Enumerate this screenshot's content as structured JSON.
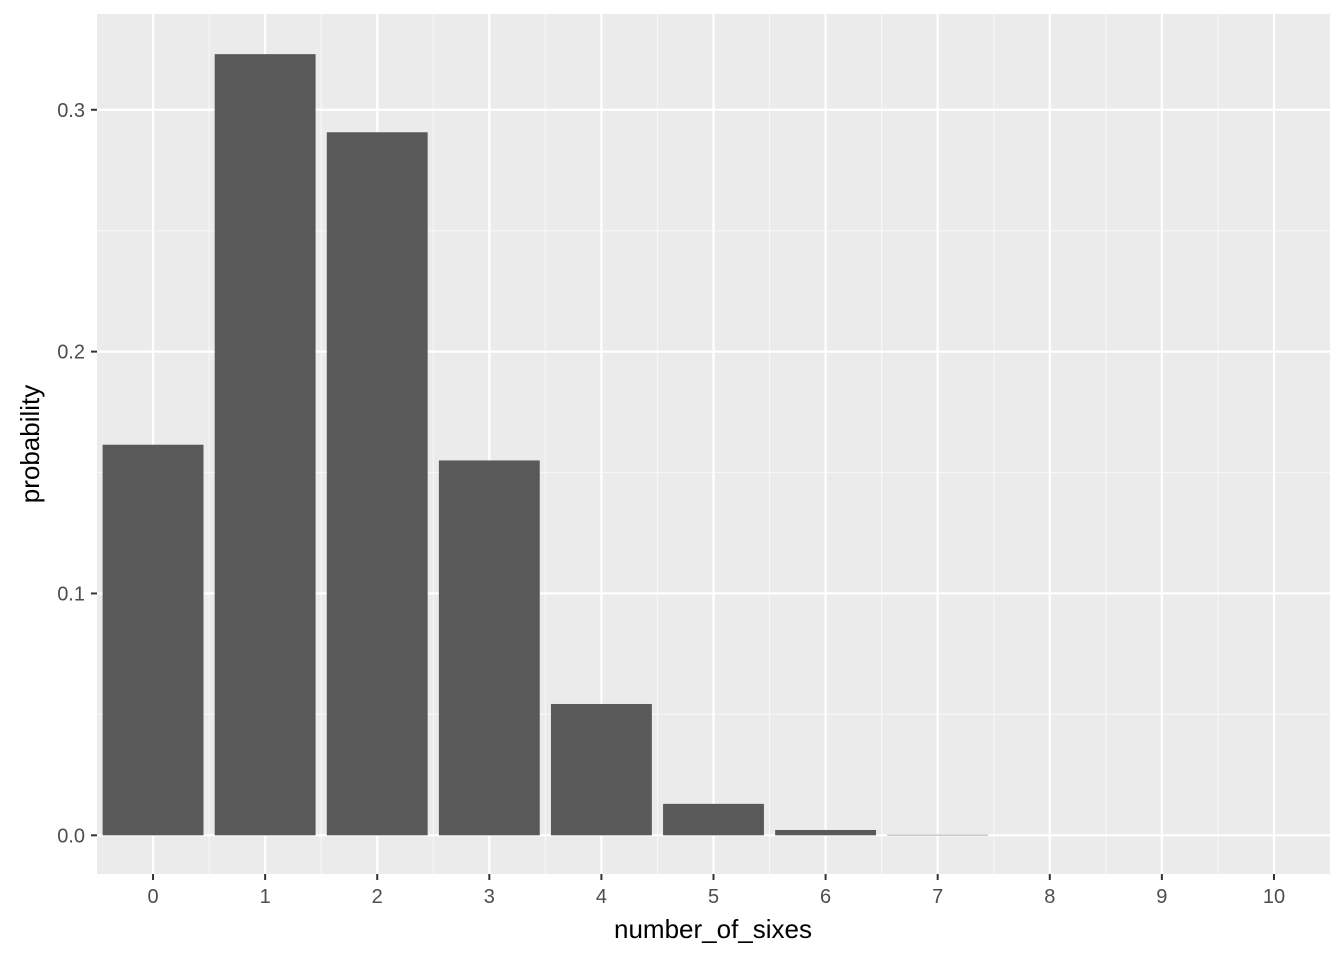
{
  "chart_data": {
    "type": "bar",
    "xlabel": "number_of_sixes",
    "ylabel": "probability",
    "categories": [
      "0",
      "1",
      "2",
      "3",
      "4",
      "5",
      "6",
      "7",
      "8",
      "9",
      "10"
    ],
    "values": [
      0.1615,
      0.323,
      0.2907,
      0.155,
      0.0543,
      0.013,
      0.0022,
      0.0002,
      0.0,
      0.0,
      0.0
    ],
    "xlim": [
      -0.5,
      10.5
    ],
    "ylim": [
      -0.016,
      0.3396
    ],
    "yticks": [
      0.0,
      0.1,
      0.2,
      0.3
    ],
    "ytick_labels": [
      "0.0",
      "0.1",
      "0.2",
      "0.3"
    ],
    "grid": true,
    "colors": {
      "bar": "#595959",
      "panel": "#ebebeb",
      "grid_major": "#ffffff",
      "grid_minor": "#f7f7f7",
      "tick_text": "#4d4d4d",
      "tick_mark": "#333333"
    }
  }
}
